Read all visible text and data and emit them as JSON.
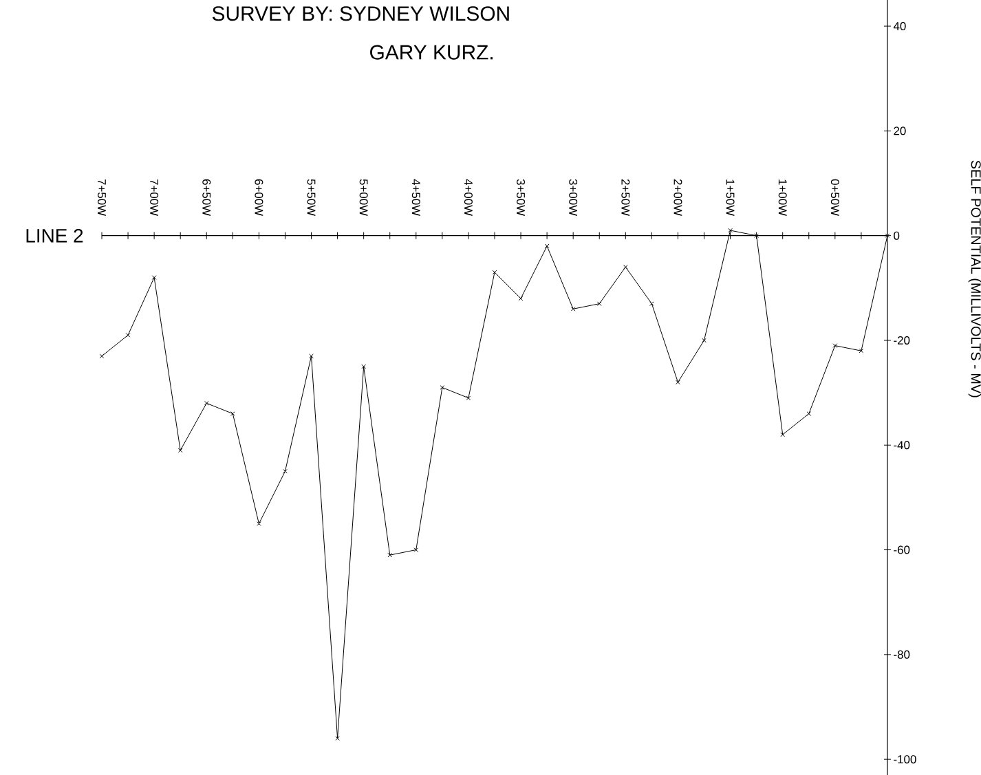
{
  "chart_data": {
    "type": "line",
    "title": "SURVEY BY: SYDNEY WILSON",
    "subtitle": "GARY KURZ.",
    "ylabel": "SELF POTENTIAL (MILLIVOLTS - MV)",
    "annotations": [
      "LINE 2"
    ],
    "categories": [
      "7+50W",
      null,
      "7+00W",
      null,
      "6+50W",
      null,
      "6+00W",
      null,
      "5+50W",
      null,
      "5+00W",
      null,
      "4+50W",
      null,
      "4+00W",
      null,
      "3+50W",
      null,
      "3+00W",
      null,
      "2+50W",
      null,
      "2+00W",
      null,
      "1+50W",
      null,
      "1+00W",
      null,
      "0+50W",
      null,
      null
    ],
    "values": [
      -23,
      -19,
      -8,
      -41,
      -32,
      -34,
      -55,
      -45,
      -23,
      -96,
      -25,
      -61,
      -60,
      -29,
      -31,
      -7,
      -12,
      -2,
      -14,
      -13,
      -6,
      -13,
      -28,
      -20,
      1,
      0,
      -38,
      -34,
      -21,
      -22,
      0
    ],
    "color": "#000000",
    "marker": "cross",
    "line_style": "solid",
    "ylim": [
      -103,
      45
    ],
    "yticks": [
      40,
      20,
      0,
      -20,
      -40,
      -60,
      -80,
      -100
    ]
  }
}
